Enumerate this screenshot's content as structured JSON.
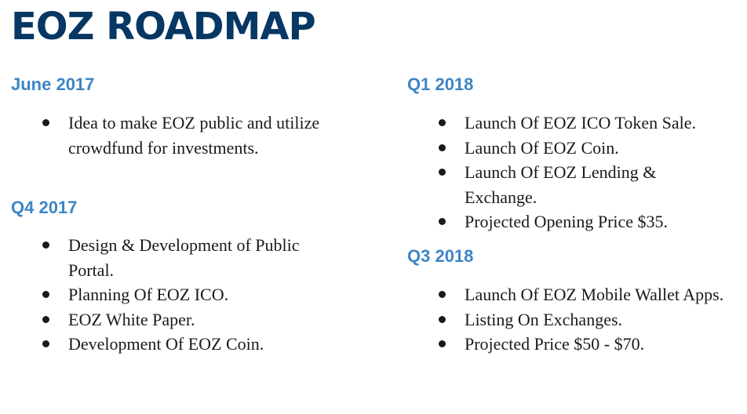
{
  "title": "EOZ ROADMAP",
  "columns": [
    {
      "sections": [
        {
          "heading": "June 2017",
          "items": [
            "Idea to make EOZ public and utilize crowdfund for investments."
          ]
        },
        {
          "heading": "Q4 2017",
          "items": [
            "Design & Development of Public Portal.",
            "Planning Of EOZ ICO.",
            "EOZ White Paper.",
            "Development Of EOZ Coin."
          ]
        }
      ]
    },
    {
      "sections": [
        {
          "heading": "Q1 2018",
          "items": [
            "Launch Of EOZ ICO Token Sale.",
            "Launch Of EOZ Coin.",
            "Launch Of EOZ Lending & Exchange.",
            "Projected Opening Price $35."
          ]
        },
        {
          "heading": "Q3 2018",
          "items": [
            "Launch Of EOZ Mobile Wallet Apps.",
            "Listing On Exchanges.",
            "Projected Price $50 - $70."
          ]
        }
      ]
    }
  ]
}
